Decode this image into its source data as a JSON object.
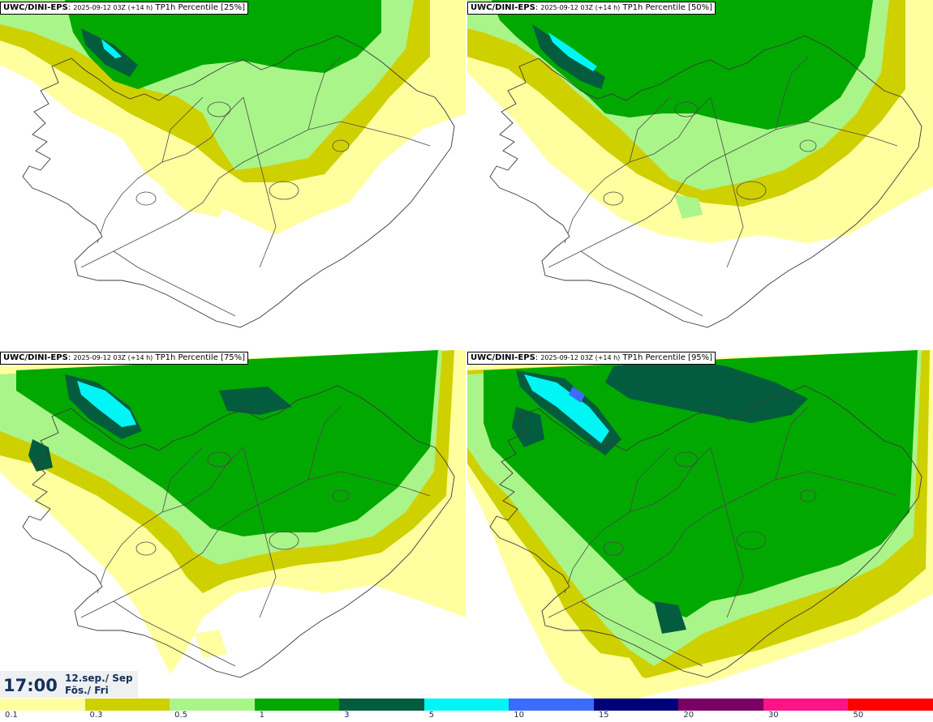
{
  "panels": [
    {
      "model": "UWC/DINI-EPS",
      "run": "2025-09-12 03Z (+14 h)",
      "param": "TP1h Percentile",
      "pct": "[25%]",
      "level": 1
    },
    {
      "model": "UWC/DINI-EPS",
      "run": "2025-09-12 03Z (+14 h)",
      "param": "TP1h Percentile",
      "pct": "[50%]",
      "level": 2
    },
    {
      "model": "UWC/DINI-EPS",
      "run": "2025-09-12 03Z (+14 h)",
      "param": "TP1h Percentile",
      "pct": "[75%]",
      "level": 3
    },
    {
      "model": "UWC/DINI-EPS",
      "run": "2025-09-12 03Z (+14 h)",
      "param": "TP1h Percentile",
      "pct": "[95%]",
      "level": 4
    }
  ],
  "time": {
    "clock": "17:00",
    "date_line1": "12.sep./ Sep",
    "date_line2": "Fös./ Fri"
  },
  "legend": {
    "colors": [
      "#ffffa0",
      "#cfd000",
      "#a9f58a",
      "#00a800",
      "#045c3e",
      "#00f5f5",
      "#3d6bff",
      "#00007a",
      "#7a0064",
      "#ff1488",
      "#ff0000"
    ],
    "labels": [
      "0.1",
      "0.3",
      "0.5",
      "1",
      "3",
      "5",
      "10",
      "15",
      "20",
      "30",
      "50"
    ]
  }
}
